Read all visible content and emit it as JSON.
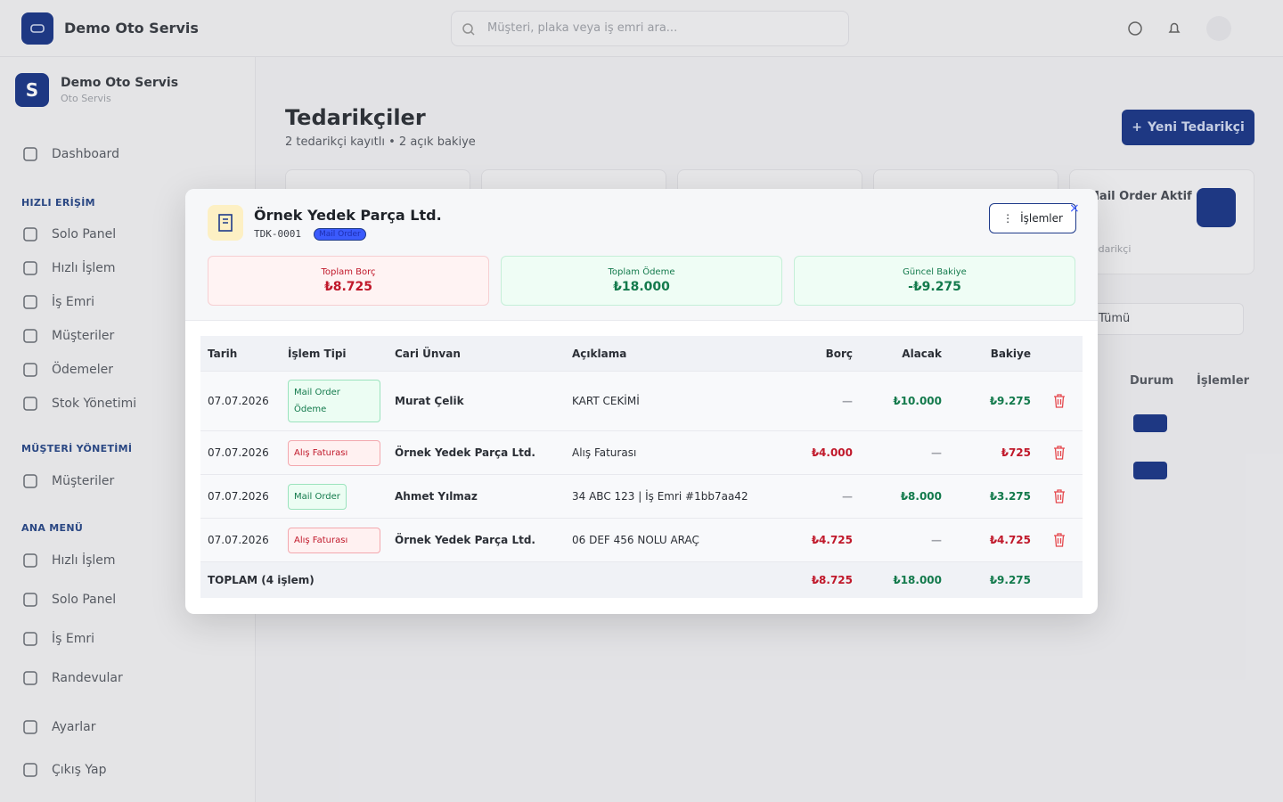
{
  "topbar": {
    "brand": "Demo Oto Servis",
    "search_placeholder": "Müşteri, plaka veya iş emri ara..."
  },
  "sidebar": {
    "org_initial": "S",
    "org_name": "Demo Oto Servis",
    "org_type": "Oto Servis",
    "dashboard": "Dashboard",
    "sections": [
      {
        "title": "HIZLI ERİŞİM",
        "items": [
          "Solo Panel",
          "Hızlı İşlem",
          "İş Emri",
          "Müşteriler",
          "Ödemeler",
          "Stok Yönetimi"
        ]
      },
      {
        "title": "MÜŞTERİ YÖNETİMİ",
        "items": [
          "Müşteriler"
        ]
      },
      {
        "title": "ANA MENÜ",
        "items": [
          "Hızlı İşlem",
          "Solo Panel",
          "İş Emri",
          "Randevular"
        ]
      }
    ],
    "settings": "Ayarlar",
    "logout": "Çıkış Yap"
  },
  "main": {
    "title": "Tedarikçiler",
    "subtitle": "2 tedarikçi kayıtlı • 2 açık bakiye",
    "new_button": "Yeni Tedarikçi",
    "card_title": "Mail Order Aktif",
    "card_sub": "Tedarikçi",
    "filter": "Tümü",
    "col_status": "Durum",
    "col_actions": "İşlemler"
  },
  "modal": {
    "title": "Örnek Yedek Parça Ltd.",
    "code": "TDK-0001",
    "badge": "Mail Order",
    "actions_button": "İşlemler",
    "summary": [
      {
        "label": "Toplam Borç",
        "value": "₺8.725",
        "color": "red"
      },
      {
        "label": "Toplam Ödeme",
        "value": "₺18.000",
        "color": "green"
      },
      {
        "label": "Güncel Bakiye",
        "value": "-₺9.275",
        "color": "green"
      }
    ],
    "table": {
      "columns": [
        "Tarih",
        "İşlem Tipi",
        "Cari Ünvan",
        "Açıklama",
        "Borç",
        "Alacak",
        "Bakiye"
      ],
      "rows": [
        {
          "date": "07.07.2026",
          "type": "Mail Order Ödeme",
          "type_color": "green",
          "party": "Murat Çelik",
          "description": "KART CEKİMİ",
          "debit": "—",
          "credit": "₺10.000",
          "balance": "₺9.275",
          "balance_color": "green"
        },
        {
          "date": "07.07.2026",
          "type": "Alış Faturası",
          "type_color": "red",
          "party": "Örnek Yedek Parça Ltd.",
          "description": "Alış Faturası",
          "debit": "₺4.000",
          "credit": "—",
          "balance": "₺725",
          "balance_color": "red"
        },
        {
          "date": "07.07.2026",
          "type": "Mail Order",
          "type_color": "green",
          "party": "Ahmet Yılmaz",
          "description": "34 ABC 123 | İş Emri #1bb7aa42",
          "debit": "—",
          "credit": "₺8.000",
          "balance": "₺3.275",
          "balance_color": "green"
        },
        {
          "date": "07.07.2026",
          "type": "Alış Faturası",
          "type_color": "red",
          "party": "Örnek Yedek Parça Ltd.",
          "description": "06 DEF 456 NOLU ARAÇ",
          "debit": "₺4.725",
          "credit": "—",
          "balance": "₺4.725",
          "balance_color": "red"
        }
      ],
      "total": {
        "label": "TOPLAM (4 işlem)",
        "debit": "₺8.725",
        "credit": "₺18.000",
        "balance": "₺9.275"
      }
    }
  }
}
